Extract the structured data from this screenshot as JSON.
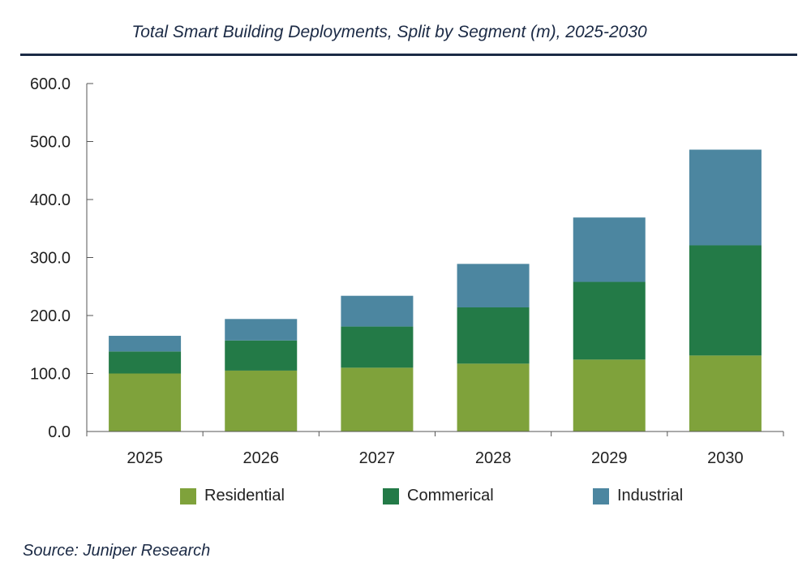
{
  "title": "Total Smart Building Deployments, Split by Segment (m), 2025-2030",
  "source": "Source: Juniper Research",
  "chart_data": {
    "type": "bar",
    "stacked": true,
    "categories": [
      "2025",
      "2026",
      "2027",
      "2028",
      "2029",
      "2030"
    ],
    "series": [
      {
        "name": "Residential",
        "color": "#7fa23b",
        "values": [
          100,
          105,
          110,
          117,
          124,
          131
        ]
      },
      {
        "name": "Commerical",
        "color": "#237a47",
        "values": [
          38,
          52,
          71,
          97,
          134,
          190
        ]
      },
      {
        "name": "Industrial",
        "color": "#4c86a0",
        "values": [
          27,
          37,
          53,
          75,
          111,
          165
        ]
      }
    ],
    "ylim": [
      0,
      600
    ],
    "yticks": [
      "0.0",
      "100.0",
      "200.0",
      "300.0",
      "400.0",
      "500.0",
      "600.0"
    ],
    "grid": false,
    "legend_position": "bottom"
  }
}
